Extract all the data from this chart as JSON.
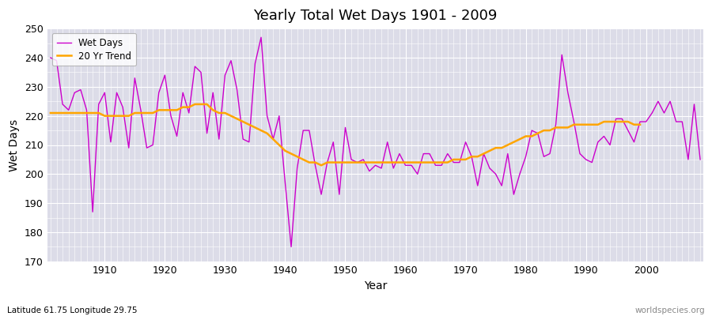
{
  "title": "Yearly Total Wet Days 1901 - 2009",
  "xlabel": "Year",
  "ylabel": "Wet Days",
  "subtitle": "Latitude 61.75 Longitude 29.75",
  "watermark": "worldspecies.org",
  "ylim": [
    170,
    250
  ],
  "yticks": [
    170,
    180,
    190,
    200,
    210,
    220,
    230,
    240,
    250
  ],
  "bg_color": "#dcdce8",
  "fig_color": "#ffffff",
  "line_color": "#cc00cc",
  "trend_color": "#ffa500",
  "years": [
    1901,
    1902,
    1903,
    1904,
    1905,
    1906,
    1907,
    1908,
    1909,
    1910,
    1911,
    1912,
    1913,
    1914,
    1915,
    1916,
    1917,
    1918,
    1919,
    1920,
    1921,
    1922,
    1923,
    1924,
    1925,
    1926,
    1927,
    1928,
    1929,
    1930,
    1931,
    1932,
    1933,
    1934,
    1935,
    1936,
    1937,
    1938,
    1939,
    1940,
    1941,
    1942,
    1943,
    1944,
    1945,
    1946,
    1947,
    1948,
    1949,
    1950,
    1951,
    1952,
    1953,
    1954,
    1955,
    1956,
    1957,
    1958,
    1959,
    1960,
    1961,
    1962,
    1963,
    1964,
    1965,
    1966,
    1967,
    1968,
    1969,
    1970,
    1971,
    1972,
    1973,
    1974,
    1975,
    1976,
    1977,
    1978,
    1979,
    1980,
    1981,
    1982,
    1983,
    1984,
    1985,
    1986,
    1987,
    1988,
    1989,
    1990,
    1991,
    1992,
    1993,
    1994,
    1995,
    1996,
    1997,
    1998,
    1999,
    2000,
    2001,
    2002,
    2003,
    2004,
    2005,
    2006,
    2007,
    2008,
    2009
  ],
  "wet_days": [
    240,
    239,
    224,
    222,
    228,
    229,
    222,
    187,
    224,
    228,
    211,
    228,
    223,
    209,
    233,
    222,
    209,
    210,
    228,
    234,
    220,
    213,
    228,
    221,
    237,
    235,
    214,
    228,
    212,
    234,
    239,
    229,
    212,
    211,
    238,
    247,
    220,
    212,
    220,
    197,
    175,
    202,
    215,
    215,
    203,
    193,
    204,
    211,
    193,
    216,
    205,
    204,
    205,
    201,
    203,
    202,
    211,
    202,
    207,
    203,
    203,
    200,
    207,
    207,
    203,
    203,
    207,
    204,
    204,
    211,
    206,
    196,
    207,
    202,
    200,
    196,
    207,
    193,
    200,
    206,
    215,
    214,
    206,
    207,
    217,
    241,
    228,
    218,
    207,
    205,
    204,
    211,
    213,
    210,
    219,
    219,
    215,
    211,
    218,
    218,
    221,
    225,
    221,
    225,
    218,
    218,
    205,
    224,
    205
  ],
  "trend": [
    221,
    221,
    221,
    221,
    221,
    221,
    221,
    221,
    221,
    220,
    220,
    220,
    220,
    220,
    221,
    221,
    221,
    221,
    222,
    222,
    222,
    222,
    223,
    223,
    224,
    224,
    224,
    222,
    221,
    221,
    220,
    219,
    218,
    217,
    216,
    215,
    214,
    212,
    210,
    208,
    207,
    206,
    205,
    204,
    204,
    203,
    204,
    204,
    204,
    204,
    204,
    204,
    204,
    204,
    204,
    204,
    204,
    204,
    204,
    204,
    204,
    204,
    204,
    204,
    204,
    204,
    204,
    205,
    205,
    205,
    206,
    206,
    207,
    208,
    209,
    209,
    210,
    211,
    212,
    213,
    213,
    214,
    215,
    215,
    216,
    216,
    216,
    217,
    217,
    217,
    217,
    217,
    218,
    218,
    218,
    218,
    218,
    217,
    217
  ]
}
